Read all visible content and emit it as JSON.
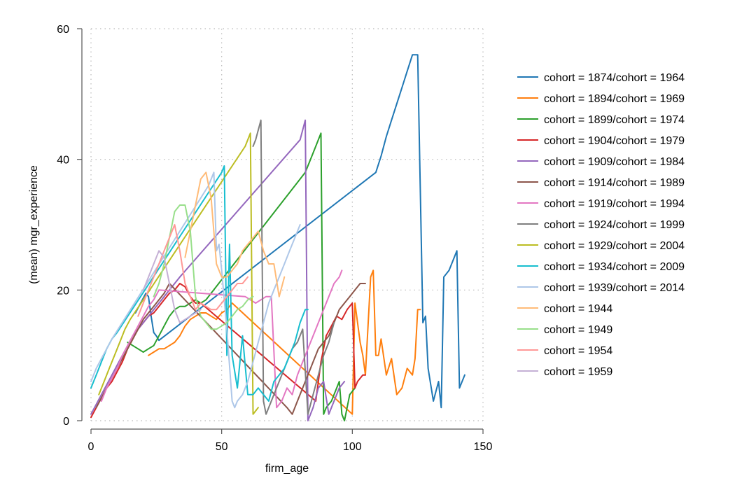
{
  "chart_data": {
    "type": "line",
    "title": "",
    "xlabel": "firm_age",
    "ylabel": "(mean) mgr_experience",
    "xlim": [
      0,
      150
    ],
    "ylim": [
      0,
      60
    ],
    "xticks": [
      0,
      50,
      100,
      150
    ],
    "yticks": [
      0,
      20,
      40,
      60
    ],
    "grid": true,
    "legend_position": "right",
    "series": [
      {
        "name": "cohort = 1874/cohort = 1964",
        "color": "#1f77b4",
        "x": [
          17,
          19,
          21,
          22,
          23,
          24,
          25,
          26,
          109,
          111,
          113,
          115,
          117,
          119,
          121,
          123,
          125,
          127,
          128,
          129,
          131,
          133,
          134,
          135,
          137,
          139,
          140,
          141,
          143
        ],
        "y": [
          16.5,
          18,
          19.5,
          19,
          16,
          13.5,
          13,
          12.3,
          38,
          40.5,
          43.5,
          46,
          48.5,
          51,
          53.5,
          56,
          56,
          15,
          16,
          8,
          3,
          6,
          2,
          22,
          23,
          25,
          26,
          5,
          7
        ]
      },
      {
        "name": "cohort = 1894/cohort = 1969",
        "color": "#ff7f0e",
        "x": [
          22,
          24,
          26,
          28,
          30,
          32,
          34,
          36,
          38,
          40,
          42,
          44,
          46,
          48,
          50,
          52,
          54,
          100,
          101,
          103,
          104,
          105,
          107,
          108,
          109,
          110,
          111,
          113,
          115,
          117,
          119,
          121,
          123,
          124,
          125,
          126
        ],
        "y": [
          10,
          10.5,
          11,
          11,
          11.5,
          12,
          13,
          14.5,
          15.5,
          16,
          16.5,
          16.5,
          16,
          15.5,
          16.5,
          17,
          18,
          1,
          18,
          12,
          10,
          7,
          22,
          23,
          10,
          10,
          12.5,
          7,
          9.5,
          4,
          5,
          8,
          7,
          9.5,
          17,
          17
        ]
      },
      {
        "name": "cohort = 1899/cohort = 1974",
        "color": "#2ca02c",
        "x": [
          14,
          16,
          18,
          20,
          22,
          24,
          26,
          28,
          30,
          32,
          34,
          36,
          38,
          40,
          42,
          44,
          82,
          84,
          86,
          88,
          89,
          90,
          92,
          95,
          96,
          97,
          99,
          101
        ],
        "y": [
          12,
          11.5,
          11,
          10.5,
          11,
          11.5,
          13,
          14.5,
          16,
          17,
          17.5,
          17.5,
          18,
          18.5,
          18,
          18.5,
          38,
          40,
          42,
          44,
          1,
          2,
          3,
          6,
          1,
          0,
          4,
          5
        ]
      },
      {
        "name": "cohort = 1904/cohort = 1979",
        "color": "#d62728",
        "x": [
          0,
          2,
          4,
          6,
          8,
          10,
          12,
          14,
          16,
          18,
          20,
          22,
          24,
          26,
          28,
          30,
          32,
          34,
          36,
          38,
          40,
          42,
          86,
          88,
          90,
          92,
          94,
          96,
          98,
          100,
          101,
          102,
          104,
          105
        ],
        "y": [
          0.5,
          2,
          3.5,
          5,
          6,
          7.5,
          9,
          11,
          12.5,
          14,
          15,
          16,
          16.5,
          17.5,
          18.5,
          19.5,
          20,
          21,
          20.5,
          19,
          18,
          18,
          3,
          9,
          13,
          14.5,
          16,
          15.5,
          17,
          18,
          5,
          6,
          7,
          7
        ]
      },
      {
        "name": "cohort = 1909/cohort = 1984",
        "color": "#9467bd",
        "x": [
          0,
          2,
          4,
          6,
          8,
          10,
          12,
          14,
          16,
          18,
          20,
          22,
          24,
          26,
          28,
          30,
          32,
          34,
          80,
          82,
          83,
          85,
          87,
          89,
          91,
          93,
          95,
          97
        ],
        "y": [
          1,
          2.5,
          4,
          5.5,
          7,
          8.5,
          10,
          11.5,
          13,
          14,
          15,
          16,
          17,
          18,
          19,
          20,
          21,
          22,
          43,
          46,
          0,
          2,
          5,
          6,
          1,
          3,
          5,
          6
        ]
      },
      {
        "name": "cohort = 1914/cohort = 1989",
        "color": "#8c564b",
        "x": [
          2,
          4,
          6,
          8,
          10,
          12,
          14,
          16,
          18,
          20,
          22,
          24,
          26,
          28,
          30,
          75,
          77,
          79,
          81,
          83,
          85,
          87,
          89,
          91,
          93,
          95,
          97,
          99,
          101,
          103,
          105
        ],
        "y": [
          2,
          3.5,
          5,
          6.5,
          8,
          9.5,
          11,
          12.5,
          14,
          15.5,
          16.5,
          17.5,
          18.5,
          19.5,
          21,
          2,
          1,
          3,
          5,
          7,
          9,
          11,
          12,
          13,
          15,
          17,
          18,
          19,
          20,
          21,
          21
        ]
      },
      {
        "name": "cohort = 1919/cohort = 1994",
        "color": "#e377c2",
        "x": [
          4,
          6,
          8,
          10,
          12,
          14,
          16,
          18,
          20,
          22,
          24,
          26,
          59,
          61,
          63,
          65,
          67,
          69,
          71,
          73,
          75,
          77,
          79,
          81,
          83,
          85,
          87,
          89,
          91,
          93,
          95,
          96
        ],
        "y": [
          3,
          5,
          6.5,
          8,
          10,
          11.5,
          13,
          14.5,
          16,
          17.5,
          18.5,
          20,
          19,
          18.5,
          18,
          18.5,
          19,
          19,
          2,
          3,
          5,
          4,
          7,
          9,
          11,
          13,
          15,
          17,
          19,
          21,
          22,
          23
        ]
      },
      {
        "name": "cohort = 1924/cohort = 1999",
        "color": "#7f7f7f",
        "x": [
          62,
          63,
          65,
          66,
          67,
          69,
          71,
          73,
          75,
          77,
          79,
          81,
          83,
          85,
          87,
          89,
          91,
          93
        ],
        "y": [
          42,
          43,
          46,
          3,
          1,
          3,
          5,
          7,
          9,
          11,
          12,
          14,
          1,
          4,
          7,
          10,
          12,
          15
        ]
      },
      {
        "name": "cohort = 1929/cohort = 2004",
        "color": "#bcbd22",
        "x": [
          3,
          5,
          7,
          9,
          11,
          13,
          15,
          59,
          61,
          62,
          64
        ],
        "y": [
          4,
          6,
          8,
          10,
          12,
          14,
          15.5,
          42,
          44,
          1,
          2
        ]
      },
      {
        "name": "cohort = 1934/cohort = 2009",
        "color": "#17becf",
        "x": [
          0,
          2,
          4,
          6,
          8,
          10,
          50,
          51,
          52,
          53,
          54,
          56,
          58,
          60,
          62,
          64,
          66,
          68,
          70,
          72,
          74,
          76,
          78,
          80,
          82,
          83
        ],
        "y": [
          5,
          7,
          9,
          11,
          12.5,
          13.5,
          38,
          39,
          10,
          27,
          10,
          5,
          13,
          4,
          4,
          5,
          4,
          3,
          6,
          7,
          8,
          10,
          12,
          15,
          17,
          17
        ]
      },
      {
        "name": "cohort = 1939/cohort = 2014",
        "color": "#aec7e8",
        "x": [
          0,
          2,
          4,
          6,
          8,
          45,
          47,
          48,
          49,
          50,
          52,
          54,
          55,
          56,
          58,
          60,
          62,
          64,
          66,
          68,
          70,
          72,
          74,
          76,
          78,
          80
        ],
        "y": [
          6,
          8,
          9.5,
          11,
          12.5,
          36,
          38,
          26,
          27,
          23,
          14,
          3,
          2,
          3,
          4,
          6,
          9,
          12,
          15,
          18,
          20,
          22,
          24,
          26,
          28,
          30
        ]
      },
      {
        "name": "cohort = 1944",
        "color": "#ffbb78",
        "x": [
          36,
          38,
          40,
          42,
          44,
          46,
          48,
          50,
          52,
          54,
          56,
          58,
          60,
          62,
          64,
          66,
          68,
          70,
          72,
          74
        ],
        "y": [
          25,
          29,
          33,
          37,
          38,
          34,
          24,
          22,
          22,
          23,
          24,
          26,
          27,
          28,
          29,
          26,
          24,
          24,
          19,
          22
        ]
      },
      {
        "name": "cohort = 1949",
        "color": "#98df8a",
        "x": [
          24,
          26,
          28,
          30,
          32,
          34,
          36,
          38,
          40,
          42,
          44,
          46,
          48,
          50,
          52,
          54,
          56,
          58,
          60,
          62
        ],
        "y": [
          19,
          21,
          24,
          28,
          32,
          33,
          33,
          29,
          19,
          16,
          15,
          14,
          14,
          14.5,
          15,
          16,
          17,
          17.5,
          18.5,
          19
        ]
      },
      {
        "name": "cohort = 1954",
        "color": "#ff9896",
        "x": [
          18,
          20,
          22,
          24,
          26,
          28,
          30,
          32,
          34,
          36,
          38,
          40,
          42,
          44,
          46,
          48,
          50,
          52,
          54,
          56,
          58,
          60
        ],
        "y": [
          16,
          18,
          20,
          22,
          24,
          26,
          28,
          30,
          26,
          21,
          19,
          17,
          18,
          17.5,
          17,
          17,
          18,
          19,
          20,
          21,
          21,
          22
        ]
      },
      {
        "name": "cohort = 1959",
        "color": "#c5b0d5",
        "x": [
          20,
          22,
          24,
          26,
          28,
          30,
          32,
          34,
          36,
          38,
          40,
          42
        ],
        "y": [
          20,
          22,
          24,
          26,
          25,
          21,
          17,
          15,
          15.5,
          16,
          16.5,
          17
        ]
      }
    ]
  }
}
